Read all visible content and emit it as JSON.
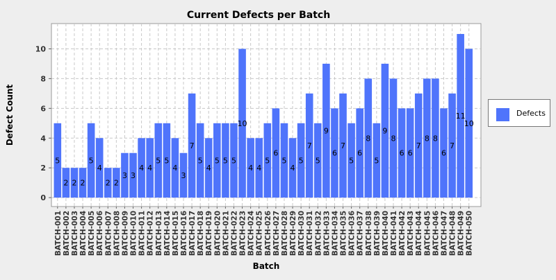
{
  "colors": {
    "background": "#eeeeee",
    "plot_background": "#ffffff",
    "bar": "#4f74fb",
    "grid": "#c8c8c8"
  },
  "chart_data": {
    "type": "bar",
    "title": "Current Defects per Batch",
    "xlabel": "Batch",
    "ylabel": "Defect Count",
    "ylim": [
      -0.6,
      11.7
    ],
    "yticks": [
      0,
      2,
      4,
      6,
      8,
      10
    ],
    "grid": true,
    "legend_position": "right",
    "data_labels": true,
    "categories": [
      "BATCH-001",
      "BATCH-002",
      "BATCH-003",
      "BATCH-004",
      "BATCH-005",
      "BATCH-006",
      "BATCH-007",
      "BATCH-008",
      "BATCH-009",
      "BATCH-010",
      "BATCH-011",
      "BATCH-012",
      "BATCH-013",
      "BATCH-014",
      "BATCH-015",
      "BATCH-016",
      "BATCH-017",
      "BATCH-018",
      "BATCH-019",
      "BATCH-020",
      "BATCH-021",
      "BATCH-022",
      "BATCH-023",
      "BATCH-024",
      "BATCH-025",
      "BATCH-026",
      "BATCH-027",
      "BATCH-028",
      "BATCH-029",
      "BATCH-030",
      "BATCH-031",
      "BATCH-032",
      "BATCH-033",
      "BATCH-034",
      "BATCH-035",
      "BATCH-036",
      "BATCH-037",
      "BATCH-038",
      "BATCH-039",
      "BATCH-040",
      "BATCH-041",
      "BATCH-042",
      "BATCH-043",
      "BATCH-044",
      "BATCH-045",
      "BATCH-046",
      "BATCH-047",
      "BATCH-048",
      "BATCH-049",
      "BATCH-050"
    ],
    "series": [
      {
        "name": "Defects",
        "values": [
          5,
          2,
          2,
          2,
          5,
          4,
          2,
          2,
          3,
          3,
          4,
          4,
          5,
          5,
          4,
          3,
          7,
          5,
          4,
          5,
          5,
          5,
          10,
          4,
          4,
          5,
          6,
          5,
          4,
          5,
          7,
          5,
          9,
          6,
          7,
          5,
          6,
          8,
          5,
          9,
          8,
          6,
          6,
          7,
          8,
          8,
          6,
          7,
          11,
          10
        ]
      }
    ]
  }
}
